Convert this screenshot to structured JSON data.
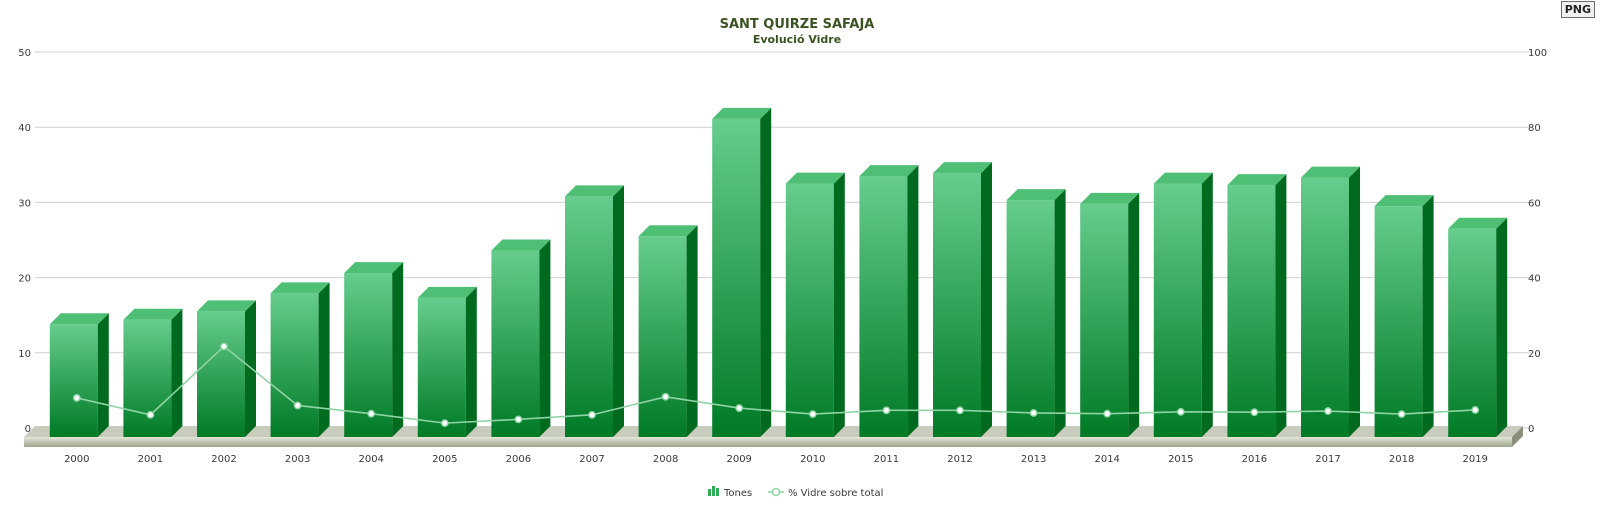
{
  "export_button": {
    "label": "PNG"
  },
  "colors": {
    "bar_front_top": "#66cd8d",
    "bar_front_bottom": "#007a25",
    "bar_side": "#006a1f",
    "bar_top": "#4fbf76",
    "line": "#8fd4a5",
    "grid": "#d0d0d0",
    "floor": "#c8ccbc",
    "title": "#3b5323",
    "axis_text": "#3a3a3a"
  },
  "chart_data": {
    "type": "bar",
    "title": "SANT QUIRZE SAFAJA",
    "subtitle": "Evolució Vidre",
    "categories": [
      "2000",
      "2001",
      "2002",
      "2003",
      "2004",
      "2005",
      "2006",
      "2007",
      "2008",
      "2009",
      "2010",
      "2011",
      "2012",
      "2013",
      "2014",
      "2015",
      "2016",
      "2017",
      "2018",
      "2019"
    ],
    "series": [
      {
        "name": "Tones",
        "type": "bar",
        "axis": "left",
        "values": [
          14.2,
          14.8,
          15.9,
          18.3,
          21.0,
          17.7,
          24.0,
          31.2,
          25.9,
          41.5,
          32.9,
          33.9,
          34.3,
          30.7,
          30.2,
          32.9,
          32.7,
          33.7,
          29.9,
          26.9
        ]
      },
      {
        "name": "% Vidre sobre total",
        "type": "line",
        "axis": "right",
        "values": [
          8,
          3.5,
          21.7,
          6,
          3.8,
          1.3,
          2.3,
          3.5,
          8.3,
          5.3,
          3.7,
          4.7,
          4.7,
          4,
          3.8,
          4.3,
          4.2,
          4.5,
          3.7,
          4.8
        ]
      }
    ],
    "y_left": {
      "ylim": [
        0,
        50
      ],
      "ticks": [
        "0",
        "10",
        "20",
        "30",
        "40",
        "50"
      ]
    },
    "y_right": {
      "ylim": [
        0,
        100
      ],
      "ticks": [
        "0",
        "20",
        "40",
        "60",
        "80",
        "100"
      ]
    },
    "grid": true,
    "legend_position": "bottom-center"
  }
}
